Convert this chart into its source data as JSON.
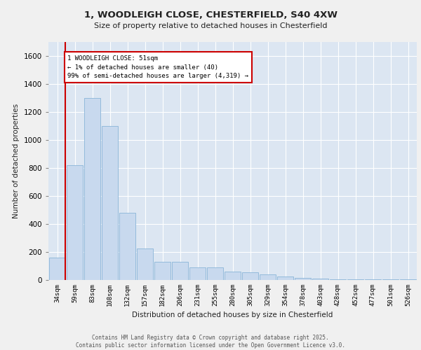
{
  "title_line1": "1, WOODLEIGH CLOSE, CHESTERFIELD, S40 4XW",
  "title_line2": "Size of property relative to detached houses in Chesterfield",
  "xlabel": "Distribution of detached houses by size in Chesterfield",
  "ylabel": "Number of detached properties",
  "footer_line1": "Contains HM Land Registry data © Crown copyright and database right 2025.",
  "footer_line2": "Contains public sector information licensed under the Open Government Licence v3.0.",
  "annotation_line1": "1 WOODLEIGH CLOSE: 51sqm",
  "annotation_line2": "← 1% of detached houses are smaller (40)",
  "annotation_line3": "99% of semi-detached houses are larger (4,319) →",
  "bar_color": "#c8d9ee",
  "bar_edge_color": "#8ab4d8",
  "vline_color": "#cc0000",
  "annotation_box_edge": "#cc0000",
  "plot_bg_color": "#dce6f2",
  "fig_bg_color": "#f0f0f0",
  "categories": [
    "34sqm",
    "59sqm",
    "83sqm",
    "108sqm",
    "132sqm",
    "157sqm",
    "182sqm",
    "206sqm",
    "231sqm",
    "255sqm",
    "280sqm",
    "305sqm",
    "329sqm",
    "354sqm",
    "378sqm",
    "403sqm",
    "428sqm",
    "452sqm",
    "477sqm",
    "501sqm",
    "526sqm"
  ],
  "values": [
    160,
    820,
    1300,
    1100,
    480,
    225,
    130,
    130,
    90,
    90,
    60,
    55,
    40,
    25,
    15,
    8,
    5,
    5,
    5,
    5,
    5
  ],
  "ylim": [
    0,
    1700
  ],
  "yticks": [
    0,
    200,
    400,
    600,
    800,
    1000,
    1200,
    1400,
    1600
  ],
  "figsize": [
    6.0,
    5.0
  ],
  "dpi": 100
}
